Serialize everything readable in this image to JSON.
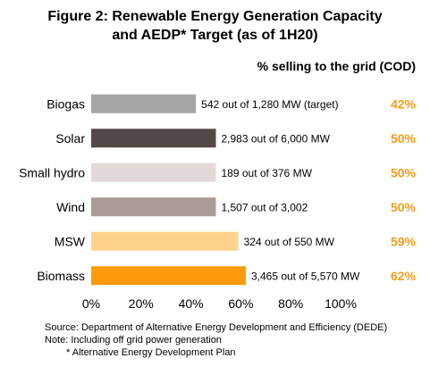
{
  "title_line1": "Figure 2: Renewable Energy Generation Capacity",
  "title_line2": "and AEDP* Target (as of 1H20)",
  "selling_header": "% selling to the grid (COD)",
  "colors": {
    "accent_orange": "#f39c1b",
    "bar_colors": [
      "#a6a6a6",
      "#524847",
      "#e3d9d8",
      "#ac9c98",
      "#ffd38d",
      "#ff9b0a"
    ]
  },
  "chart_data": {
    "type": "bar",
    "orientation": "horizontal",
    "categories": [
      "Biogas",
      "Solar",
      "Small hydro",
      "Wind",
      "MSW",
      "Biomass"
    ],
    "values": [
      42,
      50,
      50,
      50,
      59,
      62
    ],
    "value_labels": [
      "542 out of 1,280 MW (target)",
      "2,983 out of 6,000 MW",
      "189 out of 376 MW",
      "1,507 out of 3,002",
      "324 out of 550 MW",
      "3,465 out of 5,570 MW"
    ],
    "selling_to_grid": [
      "42%",
      "50%",
      "50%",
      "50%",
      "59%",
      "62%"
    ],
    "x_ticks": [
      "0%",
      "20%",
      "40%",
      "60%",
      "80%",
      "100%"
    ],
    "xlim": [
      0,
      100
    ],
    "grid": false,
    "legend": "none"
  },
  "notes": {
    "source": "Source: Department of Alternative Energy Development and Efficiency (DEDE)",
    "note": "Note: Including off grid power generation",
    "footnote": "* Alternative Energy Development Plan"
  }
}
